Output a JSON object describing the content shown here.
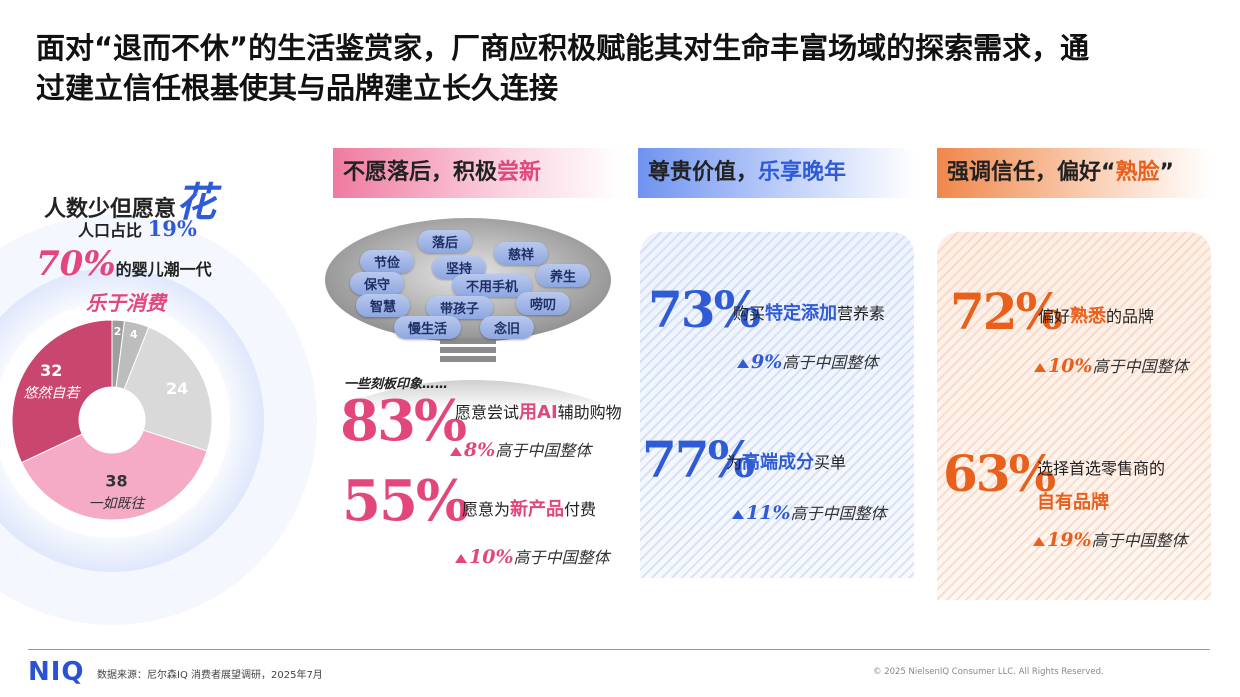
{
  "title": [
    "面对“退而不休”的生活鉴赏家，厂商应积极赋能其对生命丰富场域的探索需求，通",
    "过建立信任根基使其与品牌建立长久连接"
  ],
  "left": {
    "heading": "人数少但愿意",
    "heading_em": "花",
    "share_label": "人口占比",
    "share": "19%",
    "pct": "70%",
    "pct_text": "的婴儿潮一代",
    "sub": "乐于消费"
  },
  "chart_data": {
    "type": "donut",
    "categories": [
      null,
      null,
      null,
      "一如既往",
      "悠然自若"
    ],
    "values": [
      2,
      4,
      24,
      38,
      32
    ],
    "colors": [
      "#9e9e9e",
      "#bdbdbd",
      "#d9d9d9",
      "#f5abc6",
      "#c9466f"
    ]
  },
  "columns": [
    {
      "header": [
        "不愿落后，积极",
        "尝新"
      ],
      "tags": [
        "落后",
        "节俭",
        "慈祥",
        "坚持",
        "保守",
        "不用手机",
        "养生",
        "智慧",
        "带孩子",
        "唠叨",
        "慢生活",
        "念旧"
      ],
      "note": "一些刻板印象……",
      "stats": [
        {
          "value": "83%",
          "text": [
            "愿意尝试",
            "用AI",
            "辅助购物"
          ],
          "lift": "8%",
          "lift_text": "高于中国整体"
        },
        {
          "value": "55%",
          "text": [
            "愿意为",
            "新产品",
            "付费"
          ],
          "lift": "10%",
          "lift_text": "高于中国整体"
        }
      ]
    },
    {
      "header": [
        "尊贵价值，",
        "乐享晚年"
      ],
      "stats": [
        {
          "value": "73%",
          "text": [
            "购买",
            "特定添加",
            "营养素"
          ],
          "lift": "9%",
          "lift_text": "高于中国整体"
        },
        {
          "value": "77%",
          "text": [
            "为",
            "高端成分",
            "买单"
          ],
          "lift": "11%",
          "lift_text": "高于中国整体"
        }
      ]
    },
    {
      "header": [
        "强调信任，偏好“",
        "熟脸",
        "”"
      ],
      "stats": [
        {
          "value": "72%",
          "text": [
            "偏好",
            "熟悉",
            "的品牌"
          ],
          "lift": "10%",
          "lift_text": "高于中国整体"
        },
        {
          "value": "63%",
          "text": [
            "选择首选零售商的",
            "自有品牌"
          ],
          "lift": "19%",
          "lift_text": "高于中国整体"
        }
      ]
    }
  ],
  "footer": {
    "logo": "NIQ",
    "source": "数据来源：尼尔森IQ 消费者展望调研，2025年7月",
    "copyright": "© 2025 NielsenIQ Consumer LLC. All Rights Reserved."
  }
}
